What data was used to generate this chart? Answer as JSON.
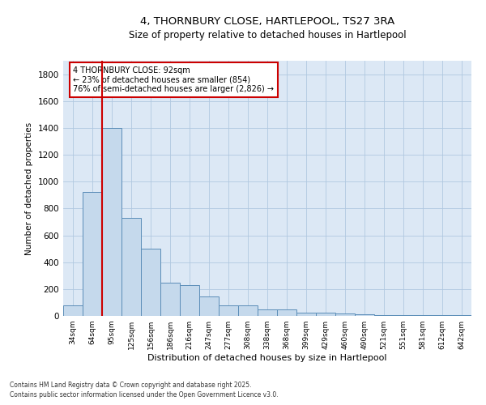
{
  "title_line1": "4, THORNBURY CLOSE, HARTLEPOOL, TS27 3RA",
  "title_line2": "Size of property relative to detached houses in Hartlepool",
  "xlabel": "Distribution of detached houses by size in Hartlepool",
  "ylabel": "Number of detached properties",
  "bin_labels": [
    "34sqm",
    "64sqm",
    "95sqm",
    "125sqm",
    "156sqm",
    "186sqm",
    "216sqm",
    "247sqm",
    "277sqm",
    "308sqm",
    "338sqm",
    "368sqm",
    "399sqm",
    "429sqm",
    "460sqm",
    "490sqm",
    "521sqm",
    "551sqm",
    "581sqm",
    "612sqm",
    "642sqm"
  ],
  "bar_heights": [
    80,
    920,
    1400,
    730,
    500,
    245,
    230,
    145,
    80,
    80,
    50,
    50,
    25,
    22,
    18,
    15,
    8,
    8,
    5,
    4,
    4
  ],
  "bar_color": "#c5d9ec",
  "bar_edge_color": "#5b8db8",
  "vline_color": "#cc0000",
  "ylim": [
    0,
    1900
  ],
  "yticks": [
    0,
    200,
    400,
    600,
    800,
    1000,
    1200,
    1400,
    1600,
    1800
  ],
  "annotation_text": "4 THORNBURY CLOSE: 92sqm\n← 23% of detached houses are smaller (854)\n76% of semi-detached houses are larger (2,826) →",
  "annotation_box_color": "#ffffff",
  "annotation_box_edge": "#cc0000",
  "bg_color": "#dce8f5",
  "footnote1": "Contains HM Land Registry data © Crown copyright and database right 2025.",
  "footnote2": "Contains public sector information licensed under the Open Government Licence v3.0."
}
